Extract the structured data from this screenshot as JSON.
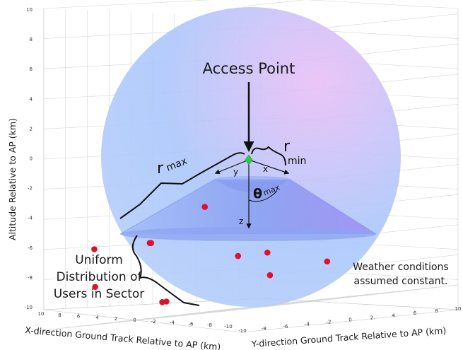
{
  "axes": {
    "z_label": "Altitude Relative to AP (km)",
    "x_label": "X-direction Ground Track Relative to AP (km)",
    "y_label": "Y-direction Ground Track Relative to AP (km)",
    "z_ticks": [
      "10",
      "8",
      "6",
      "4",
      "2",
      "0",
      "-2",
      "-4",
      "-6",
      "-8",
      "-10"
    ],
    "x_ticks": [
      "10",
      "8",
      "6",
      "4",
      "2",
      "0",
      "-2",
      "-4",
      "-6",
      "-8",
      "-10"
    ],
    "y_ticks": [
      "-10",
      "-8",
      "-6",
      "-4",
      "-2",
      "0",
      "2",
      "4",
      "6",
      "8",
      "10"
    ]
  },
  "annotations": {
    "access_point": "Access Point",
    "r_max_r": "r",
    "r_max_sub": "max",
    "r_min_r": "r",
    "r_min_sub": "min",
    "theta_symbol": "θ",
    "theta_sub": "max",
    "x_axis": "x",
    "y_axis": "y",
    "z_axis": "z",
    "uniform_line1": "Uniform",
    "uniform_line2": "Distribution of",
    "uniform_line3": "Users in Sector",
    "weather_line1": "Weather conditions",
    "weather_line2": "assumed constant."
  },
  "colors": {
    "sphere_blue": "#a9c6fb",
    "sphere_pink": "#e9bdf6",
    "cone": "#8fa6f3",
    "user_dot": "#e0102a",
    "access_point": "#2ecc40"
  },
  "chart_data": {
    "type": "scatter3d",
    "title": "",
    "xlabel": "X-direction Ground Track Relative to AP (km)",
    "ylabel": "Y-direction Ground Track Relative to AP (km)",
    "zlabel": "Altitude Relative to AP (km)",
    "xlim": [
      -10,
      10
    ],
    "ylim": [
      -10,
      10
    ],
    "zlim": [
      -10,
      10
    ],
    "grid": true,
    "access_point": [
      0,
      0,
      0
    ],
    "users": [
      {
        "x": -1.0,
        "y": -5.2,
        "z": -3.0
      },
      {
        "x": 3.0,
        "y": -6.5,
        "z": -5.0
      },
      {
        "x": 1.5,
        "y": -8.0,
        "z": -5.0
      },
      {
        "x": 6.0,
        "y": -9.0,
        "z": -5.0
      },
      {
        "x": -2.5,
        "y": -3.5,
        "z": -6.5
      },
      {
        "x": -6.0,
        "y": -4.0,
        "z": -6.5
      },
      {
        "x": 7.0,
        "y": -8.0,
        "z": -7.5
      },
      {
        "x": -3.0,
        "y": -1.0,
        "z": -8.0
      },
      {
        "x": -5.5,
        "y": 2.0,
        "z": -7.5
      },
      {
        "x": 2.0,
        "y": -6.0,
        "z": -9.0
      },
      {
        "x": 3.5,
        "y": -5.0,
        "z": -9.0
      }
    ]
  }
}
